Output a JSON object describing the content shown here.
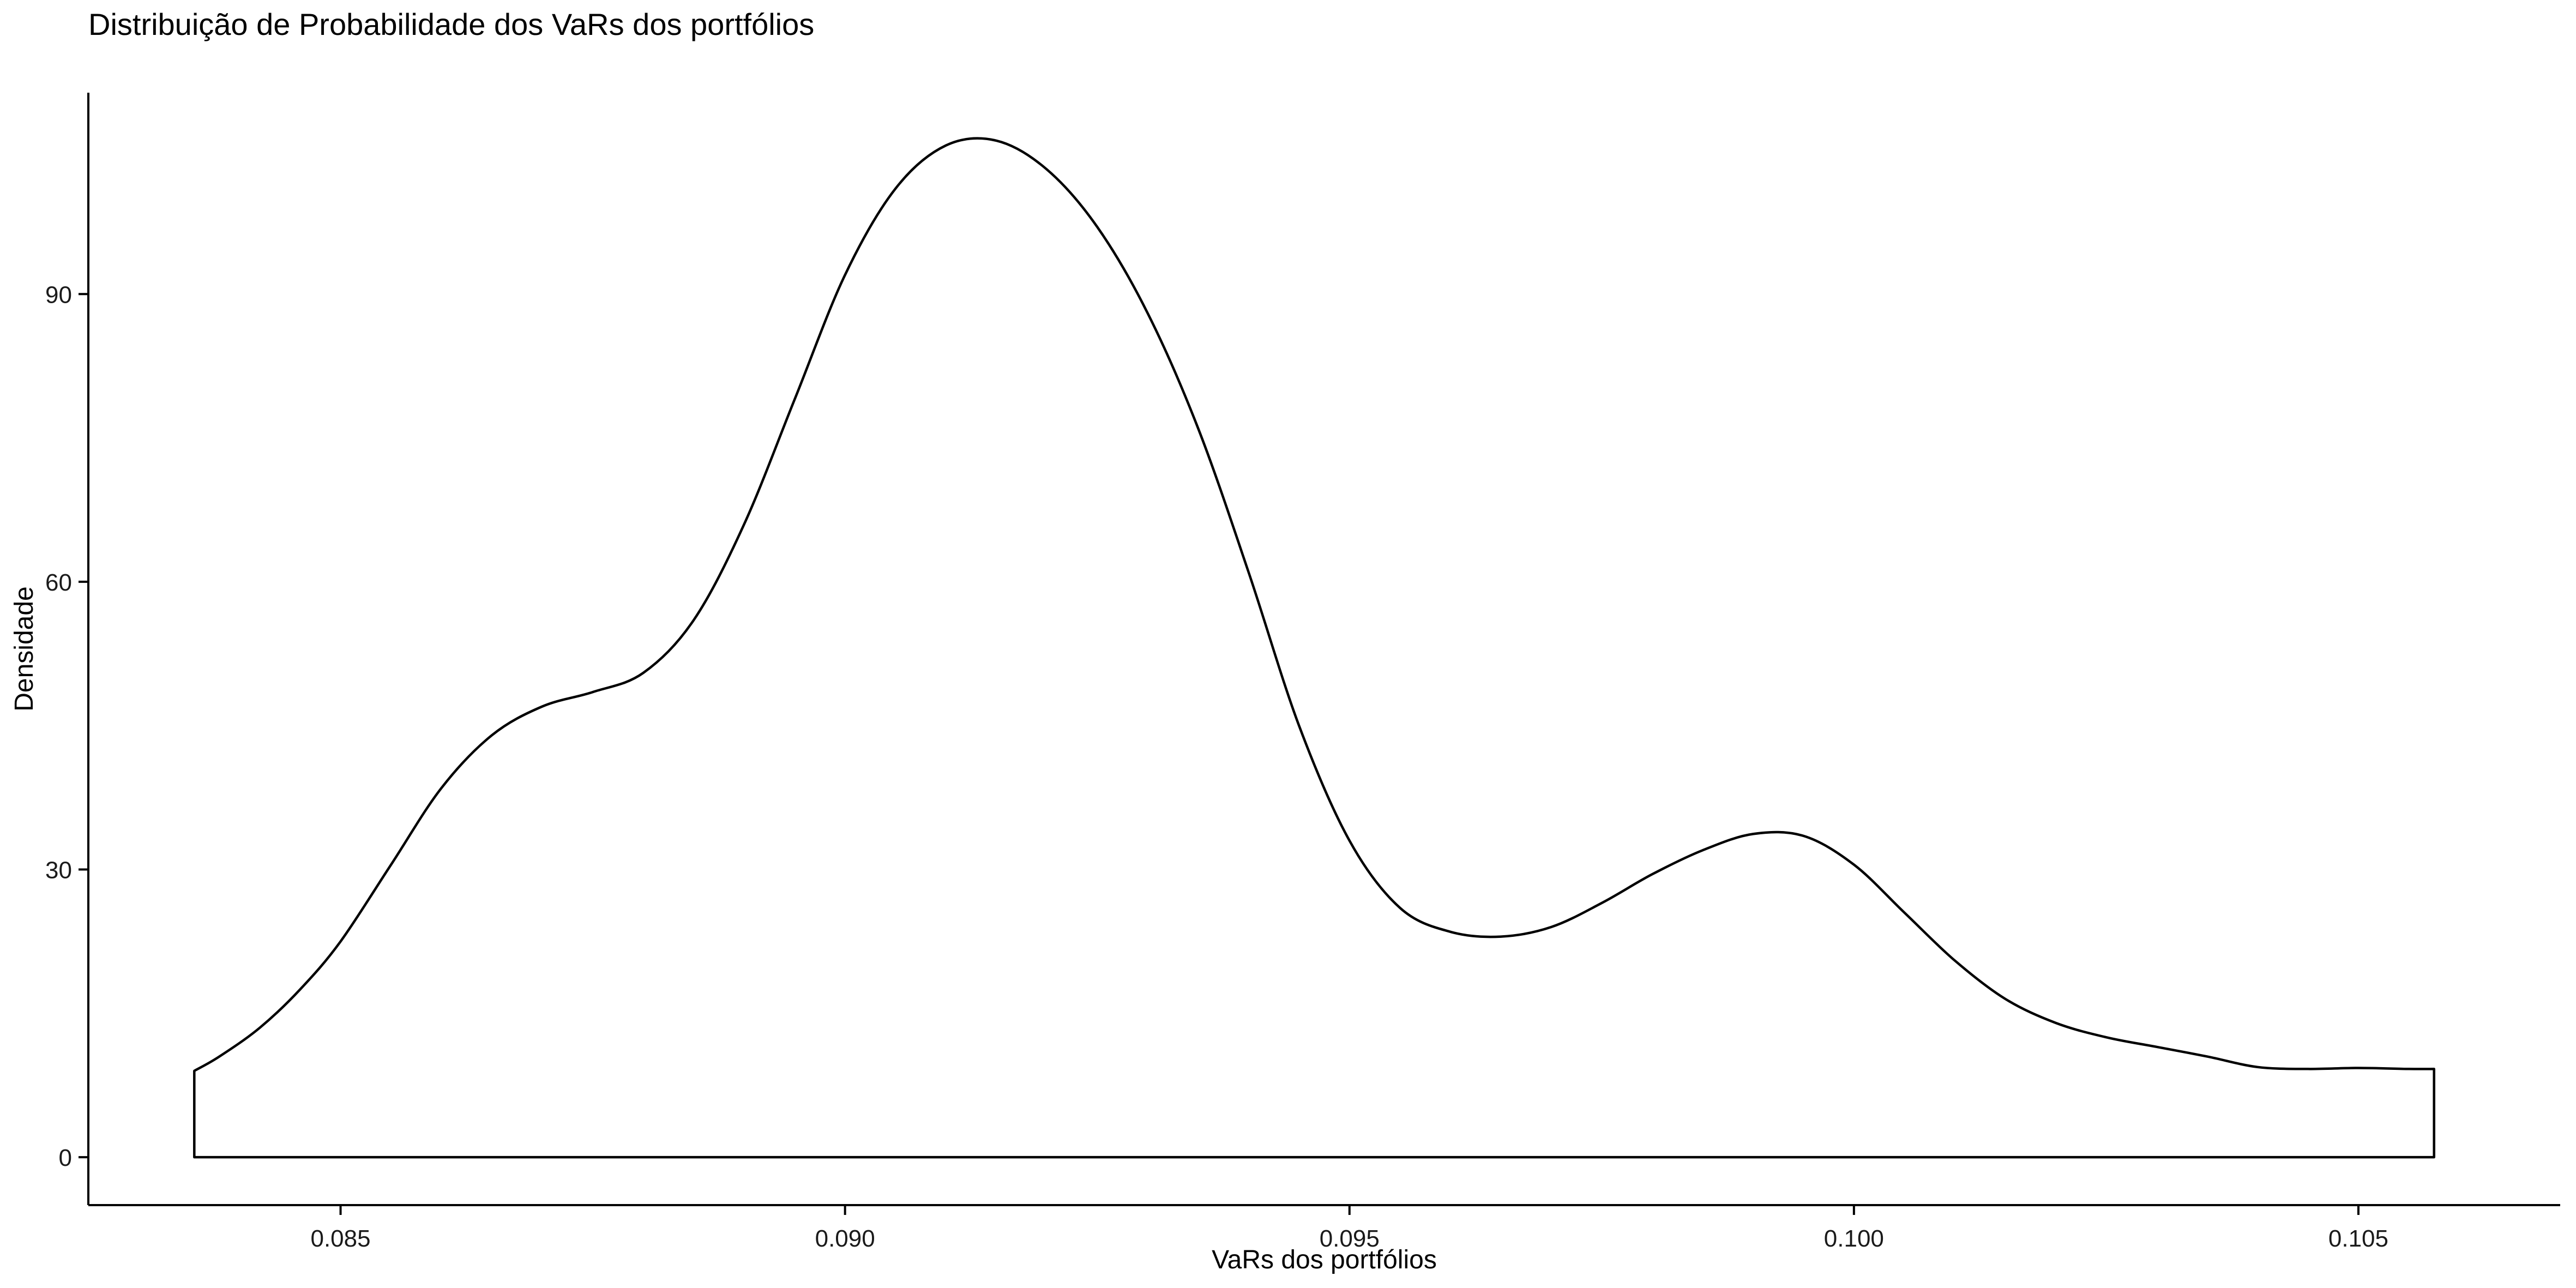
{
  "chart_data": {
    "type": "area",
    "title": "Distribuição de Probabilidade dos VaRs dos portfólios",
    "xlabel": "VaRs dos portfólios",
    "ylabel": "Densidade",
    "xlim": [
      0.0825,
      0.107
    ],
    "ylim": [
      -5,
      111
    ],
    "x_ticks": [
      0.085,
      0.09,
      0.095,
      0.1,
      0.105
    ],
    "x_tick_labels": [
      "0.085",
      "0.090",
      "0.095",
      "0.100",
      "0.105"
    ],
    "y_ticks": [
      0,
      30,
      60,
      90
    ],
    "y_tick_labels": [
      "0",
      "30",
      "60",
      "90"
    ],
    "grid": false,
    "legend": "none",
    "series": [
      {
        "x": [
          0.08355,
          0.0838,
          0.0842,
          0.0846,
          0.085,
          0.0855,
          0.086,
          0.0865,
          0.087,
          0.0875,
          0.088,
          0.0885,
          0.089,
          0.0895,
          0.09,
          0.0905,
          0.091,
          0.0915,
          0.092,
          0.0925,
          0.093,
          0.0935,
          0.094,
          0.0945,
          0.095,
          0.0955,
          0.096,
          0.0965,
          0.097,
          0.0975,
          0.098,
          0.0985,
          0.099,
          0.0995,
          0.1,
          0.1005,
          0.101,
          0.1015,
          0.102,
          0.1025,
          0.103,
          0.1035,
          0.104,
          0.1045,
          0.105,
          0.1055,
          0.10575
        ],
        "y": [
          9.0,
          10.5,
          13.5,
          17.5,
          22.5,
          30.5,
          38.5,
          44.0,
          47.0,
          48.5,
          50.5,
          56.0,
          66.0,
          79.0,
          92.0,
          101.0,
          105.5,
          106.0,
          103.0,
          97.0,
          88.0,
          76.0,
          61.0,
          45.0,
          33.0,
          26.0,
          23.5,
          23.0,
          24.0,
          26.5,
          29.5,
          32.0,
          33.7,
          33.5,
          30.5,
          25.5,
          20.5,
          16.5,
          14.0,
          12.5,
          11.5,
          10.5,
          9.4,
          9.2,
          9.3,
          9.2,
          9.2
        ],
        "fill": "#ffffff",
        "stroke": "#000000"
      }
    ]
  }
}
